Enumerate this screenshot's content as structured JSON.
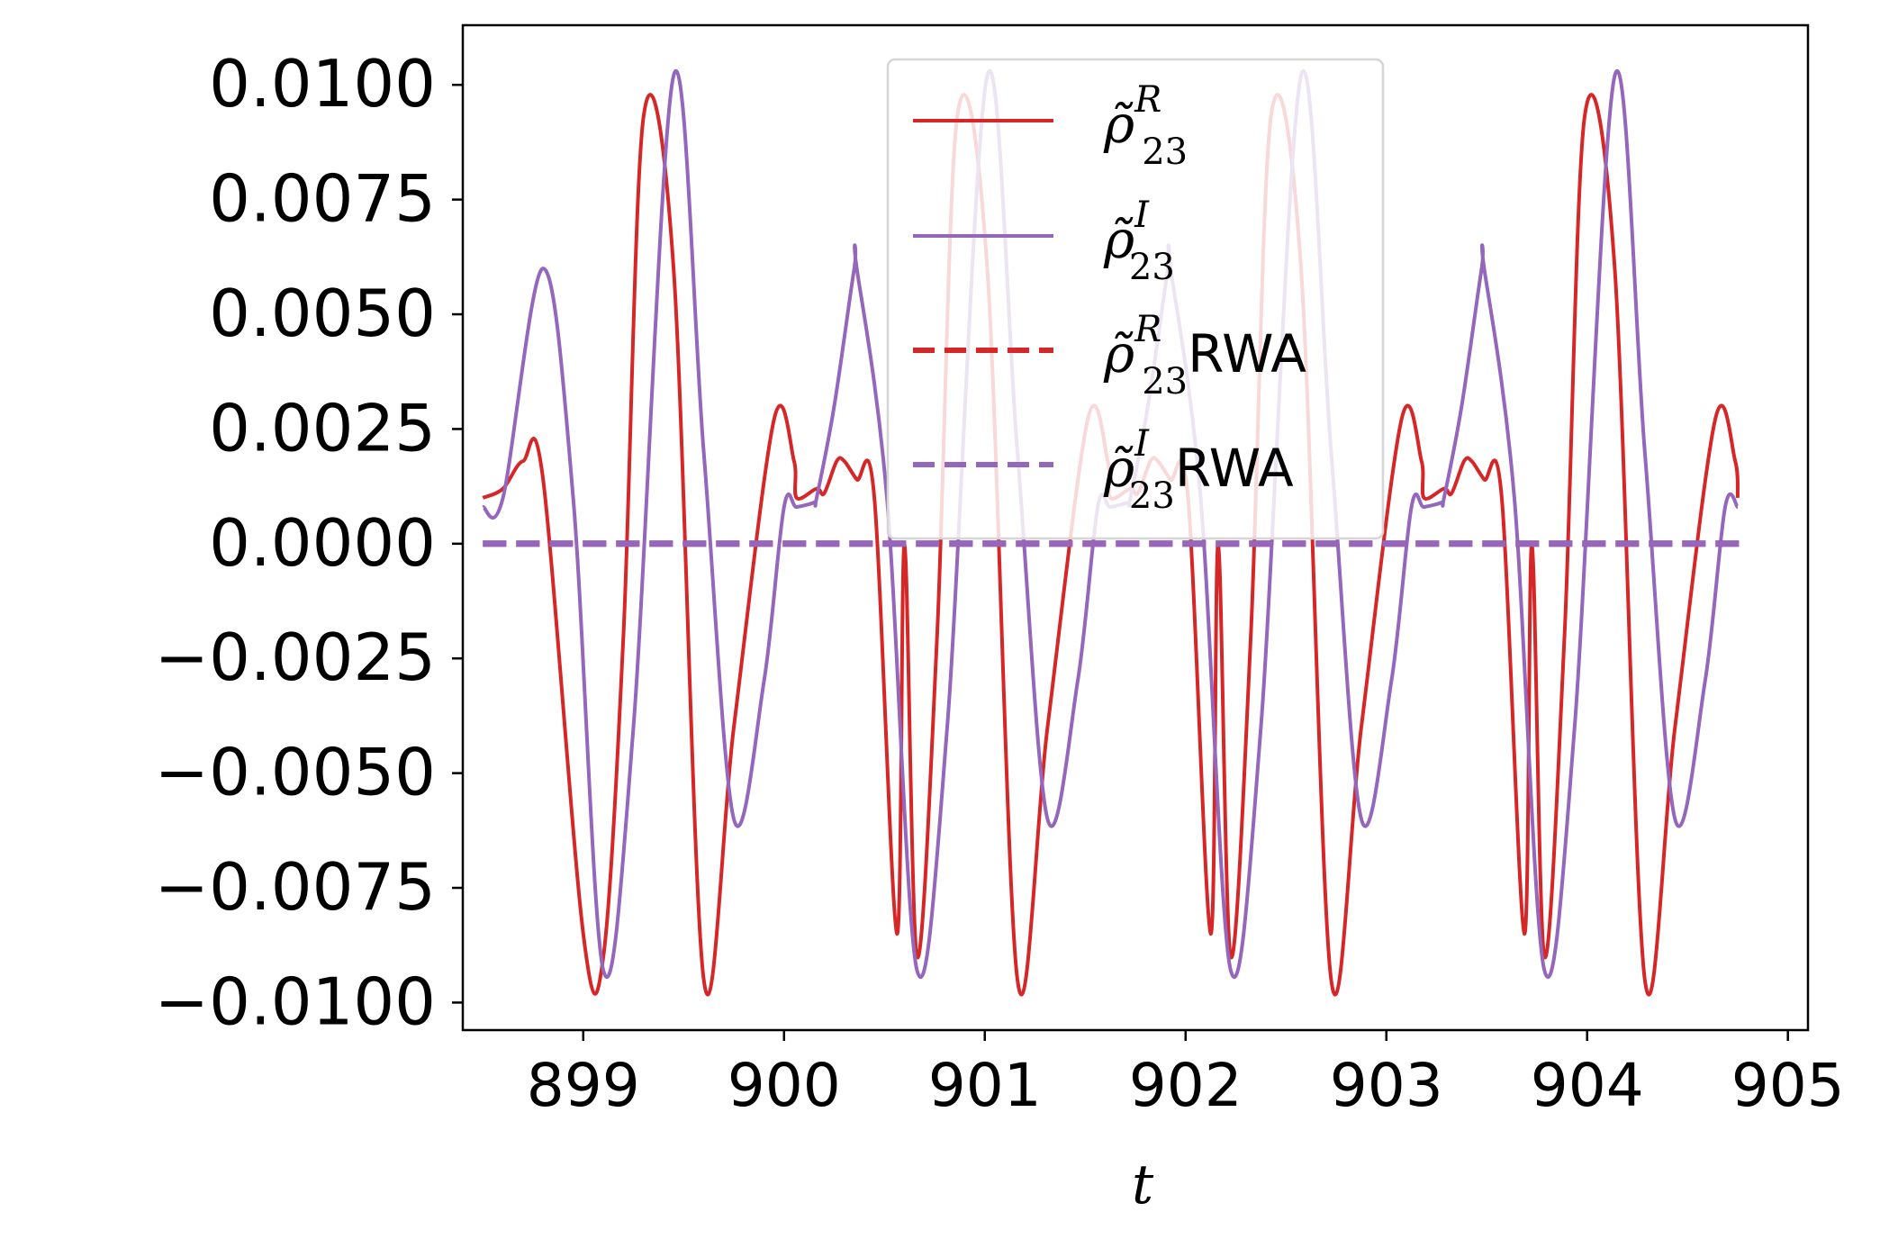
{
  "chart_data": {
    "type": "line",
    "xlabel": "t",
    "ylabel": "",
    "title": "",
    "xlim": [
      898.4,
      905.1
    ],
    "ylim": [
      -0.0106,
      0.0113
    ],
    "xticks": [
      "899",
      "900",
      "901",
      "902",
      "903",
      "904",
      "905"
    ],
    "yticks": [
      "0.0100",
      "0.0075",
      "0.0050",
      "0.0025",
      "0.0000",
      "−0.0025",
      "−0.0050",
      "−0.0075",
      "−0.0100"
    ],
    "x_range": [
      898.5,
      904.8
    ],
    "legend_position": "upper center",
    "grid": false,
    "series": [
      {
        "name": "ρ̃_23^R",
        "base": "ρ̃",
        "sup": "R",
        "sub": "23",
        "suffix": "",
        "style": "solid",
        "color": "#d62728",
        "period": 1.5625,
        "x": [
          898.5,
          898.6,
          898.7,
          898.8,
          899.0,
          899.1,
          899.2,
          899.3,
          899.45,
          899.6,
          899.75,
          899.95,
          900.05,
          900.2,
          900.3,
          900.45,
          900.6
        ],
        "y": [
          0.001,
          0.0012,
          0.0018,
          0.0014,
          -0.0085,
          -0.009,
          -0.002,
          0.0093,
          0.006,
          -0.0095,
          -0.004,
          0.0027,
          0.0018,
          0.0011,
          0.0018,
          0.001,
          0.0
        ]
      },
      {
        "name": "ρ̃_23^I",
        "base": "ρ̃",
        "sup": "I",
        "sub": "23",
        "suffix": "",
        "style": "solid",
        "color": "#9467bd",
        "period": 1.5625,
        "x": [
          898.5,
          898.6,
          898.8,
          898.95,
          899.1,
          899.25,
          899.45,
          899.6,
          899.75,
          899.9,
          900.0,
          900.15,
          900.25,
          900.35
        ],
        "y": [
          0.0008,
          0.001,
          0.006,
          0.001,
          -0.0093,
          -0.004,
          0.0102,
          0.002,
          -0.006,
          -0.003,
          0.0008,
          0.0009,
          0.003,
          0.006
        ]
      },
      {
        "name": "ρ̃_23^R RWA",
        "base": "ρ̃",
        "sup": "R",
        "sub": "23",
        "suffix": "RWA",
        "style": "dashed",
        "color": "#d62728",
        "x": [
          898.5,
          904.8
        ],
        "y": [
          0.0,
          0.0
        ]
      },
      {
        "name": "ρ̃_23^I RWA",
        "base": "ρ̃",
        "sup": "I",
        "sub": "23",
        "suffix": "RWA",
        "style": "dashed",
        "color": "#9467bd",
        "x": [
          898.5,
          904.8
        ],
        "y": [
          0.0,
          0.0
        ]
      }
    ]
  }
}
